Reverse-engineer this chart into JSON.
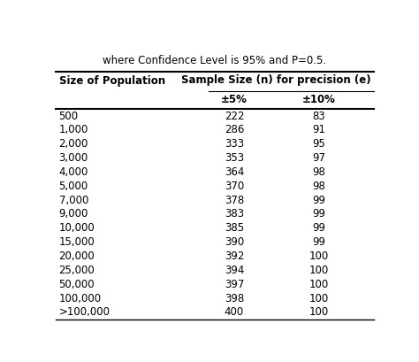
{
  "title_line": "where Confidence Level is 95% and P=0.5.",
  "col0_header": "Size of Population",
  "col1_header_top": "Sample Size (n) for precision (e)",
  "col1_header_bot": "±5%",
  "col2_header_bot": "±10%",
  "rows": [
    [
      "500",
      "222",
      "83"
    ],
    [
      "1,000",
      "286",
      "91"
    ],
    [
      "2,000",
      "333",
      "95"
    ],
    [
      "3,000",
      "353",
      "97"
    ],
    [
      "4,000",
      "364",
      "98"
    ],
    [
      "5,000",
      "370",
      "98"
    ],
    [
      "7,000",
      "378",
      "99"
    ],
    [
      "9,000",
      "383",
      "99"
    ],
    [
      "10,000",
      "385",
      "99"
    ],
    [
      "15,000",
      "390",
      "99"
    ],
    [
      "20,000",
      "392",
      "100"
    ],
    [
      "25,000",
      "394",
      "100"
    ],
    [
      "50,000",
      "397",
      "100"
    ],
    [
      "100,000",
      "398",
      "100"
    ],
    [
      ">100,000",
      "400",
      "100"
    ]
  ],
  "bg_color": "#ffffff",
  "text_color": "#000000",
  "header_fontsize": 8.5,
  "data_fontsize": 8.5,
  "title_fontsize": 8.5
}
